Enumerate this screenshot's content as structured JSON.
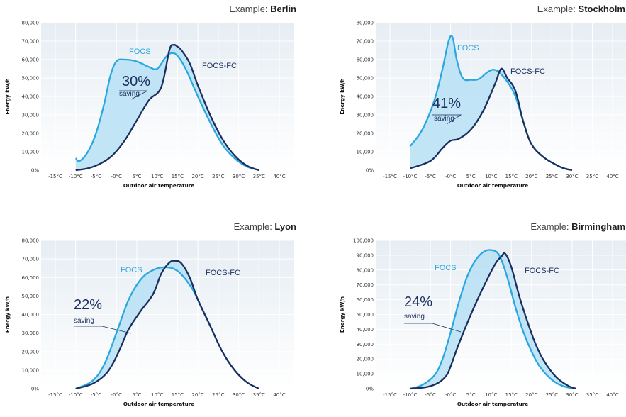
{
  "palette": {
    "focs": "#29a8e0",
    "focs_fc": "#1b2f5e",
    "fill": "#b7e0f4",
    "plot_bg_top": "#e6edf3",
    "plot_bg_bottom": "#ffffff",
    "grid": "#ffffff"
  },
  "chart_data": [
    {
      "id": "berlin",
      "type": "line",
      "title_prefix": "Example: ",
      "title_city": "Berlin",
      "xlabel": "Outdoor air temperature",
      "ylabel": "Energy kW/h",
      "x_ticks": [
        "-15°C",
        "-10°C",
        "-5°C",
        "-0°C",
        "5°C",
        "10°C",
        "15°C",
        "20°C",
        "25°C",
        "30°C",
        "35°C",
        "40°C"
      ],
      "y_ticks": [
        "0%",
        "10,000",
        "20,000",
        "30,000",
        "40,000",
        "50,000",
        "60,000",
        "70,000",
        "80,000"
      ],
      "xlim": [
        -15,
        40
      ],
      "ylim": [
        0,
        80000
      ],
      "fill_between": true,
      "series": [
        {
          "name": "FOCS",
          "x": [
            -10,
            -9,
            -7,
            -5,
            -3,
            -1.5,
            0,
            2,
            5,
            8,
            10,
            12,
            13.5,
            15,
            17,
            20,
            23,
            26,
            29,
            32,
            35
          ],
          "y": [
            6500,
            5000,
            10000,
            20000,
            36000,
            51000,
            59000,
            60000,
            59000,
            56000,
            55000,
            61000,
            63500,
            62000,
            55000,
            40000,
            26000,
            14000,
            6500,
            2000,
            0
          ]
        },
        {
          "name": "FOCS-FC",
          "x": [
            -10,
            -7,
            -4,
            -1,
            2,
            5,
            8,
            11,
            13,
            14,
            15,
            16,
            18,
            20,
            23,
            26,
            29,
            32,
            35
          ],
          "y": [
            0,
            1000,
            3500,
            8000,
            16000,
            27000,
            38000,
            45000,
            65000,
            68000,
            67000,
            65000,
            58000,
            46000,
            30000,
            17000,
            8000,
            2500,
            0
          ]
        }
      ],
      "annotation": {
        "value": "30%",
        "text": "saving"
      }
    },
    {
      "id": "stockholm",
      "type": "line",
      "title_prefix": "Example: ",
      "title_city": "Stockholm",
      "xlabel": "Outdoor air temperature",
      "ylabel": "Energy kW/h",
      "x_ticks": [
        "-15°C",
        "-10°C",
        "-5°C",
        "-0°C",
        "5°C",
        "10°C",
        "15°C",
        "20°C",
        "25°C",
        "30°C",
        "35°C",
        "40°C"
      ],
      "y_ticks": [
        "0%",
        "10,000",
        "20,000",
        "30,000",
        "40,000",
        "50,000",
        "60,000",
        "70,000",
        "80,000"
      ],
      "xlim": [
        -15,
        40
      ],
      "ylim": [
        0,
        80000
      ],
      "fill_between": true,
      "series": [
        {
          "name": "FOCS",
          "x": [
            -10,
            -7,
            -4,
            -2,
            -0.5,
            0.5,
            1.5,
            3,
            5,
            7,
            9,
            10.5,
            12,
            14,
            16,
            18,
            20,
            23,
            26,
            28,
            30
          ],
          "y": [
            13000,
            22000,
            38000,
            55000,
            70000,
            72000,
            60000,
            50000,
            49000,
            49500,
            53000,
            54500,
            53000,
            48000,
            40000,
            26000,
            14000,
            7000,
            3000,
            1000,
            0
          ]
        },
        {
          "name": "FOCS-FC",
          "x": [
            -10,
            -5,
            -2,
            0,
            2,
            5,
            8,
            11,
            12.5,
            14,
            16,
            18,
            20,
            23,
            26,
            28,
            30
          ],
          "y": [
            1000,
            5000,
            12000,
            16000,
            17000,
            22000,
            32000,
            47000,
            55000,
            50000,
            43000,
            26000,
            14000,
            7000,
            3000,
            1000,
            0
          ]
        }
      ],
      "annotation": {
        "value": "41%",
        "text": "saving"
      }
    },
    {
      "id": "lyon",
      "type": "line",
      "title_prefix": "Example: ",
      "title_city": "Lyon",
      "xlabel": "Outdoor air temperature",
      "ylabel": "Energy kW/h",
      "x_ticks": [
        "-15°C",
        "-10°C",
        "-5°C",
        "-0°C",
        "5°C",
        "10°C",
        "15°C",
        "20°C",
        "25°C",
        "30°C",
        "35°C",
        "40°C"
      ],
      "y_ticks": [
        "0%",
        "10,000",
        "20,000",
        "30,000",
        "40,000",
        "50,000",
        "60,000",
        "70,000",
        "80,000"
      ],
      "xlim": [
        -15,
        40
      ],
      "ylim": [
        0,
        80000
      ],
      "fill_between": true,
      "series": [
        {
          "name": "FOCS",
          "x": [
            -10,
            -6,
            -3,
            0,
            3,
            6,
            9,
            12,
            15,
            18,
            20,
            23,
            26,
            29,
            32,
            35
          ],
          "y": [
            0,
            4000,
            13000,
            30000,
            48000,
            59000,
            64000,
            65500,
            63500,
            56000,
            48000,
            34000,
            20000,
            10000,
            3500,
            0
          ]
        },
        {
          "name": "FOCS-FC",
          "x": [
            -10,
            -6,
            -3,
            -1,
            1,
            3,
            6,
            9,
            11,
            13,
            14.5,
            16,
            18,
            20,
            23,
            26,
            29,
            32,
            35
          ],
          "y": [
            0,
            2500,
            7000,
            13000,
            22000,
            32000,
            42000,
            51000,
            62000,
            68000,
            69000,
            67500,
            60000,
            48000,
            34000,
            20000,
            10000,
            3500,
            0
          ]
        }
      ],
      "annotation": {
        "value": "22%",
        "text": "saving"
      }
    },
    {
      "id": "birmingham",
      "type": "line",
      "title_prefix": "Example: ",
      "title_city": "Birmingham",
      "xlabel": "Outdoor air temperature",
      "ylabel": "Energy kW/h",
      "x_ticks": [
        "-15°C",
        "-10°C",
        "-5°C",
        "-0°C",
        "5°C",
        "10°C",
        "15°C",
        "20°C",
        "25°C",
        "30°C",
        "35°C",
        "40°C"
      ],
      "y_ticks": [
        "0%",
        "10,000",
        "20,000",
        "30,000",
        "40,000",
        "50,000",
        "60,000",
        "70,000",
        "80,000",
        "90,000",
        "100,000"
      ],
      "xlim": [
        -15,
        40
      ],
      "ylim": [
        0,
        100000
      ],
      "fill_between": true,
      "series": [
        {
          "name": "FOCS",
          "x": [
            -10,
            -7,
            -4,
            -2,
            0,
            2,
            4,
            6,
            8,
            10,
            12,
            14,
            16,
            18,
            20,
            22,
            25,
            28,
            31
          ],
          "y": [
            0,
            2500,
            9000,
            20000,
            38000,
            58000,
            75000,
            86000,
            92000,
            93500,
            90000,
            75000,
            55000,
            38000,
            25000,
            15000,
            6000,
            1500,
            0
          ]
        },
        {
          "name": "FOCS-FC",
          "x": [
            -10,
            -6,
            -3,
            -1,
            0,
            2,
            5,
            8,
            11,
            12.5,
            13.5,
            15,
            17,
            19,
            21,
            23,
            26,
            29,
            31
          ],
          "y": [
            0,
            1000,
            4000,
            9000,
            15000,
            30000,
            50000,
            68000,
            84000,
            89000,
            91000,
            82000,
            62000,
            45000,
            30000,
            19000,
            8000,
            2000,
            0
          ]
        }
      ],
      "annotation": {
        "value": "24%",
        "text": "saving"
      }
    }
  ]
}
